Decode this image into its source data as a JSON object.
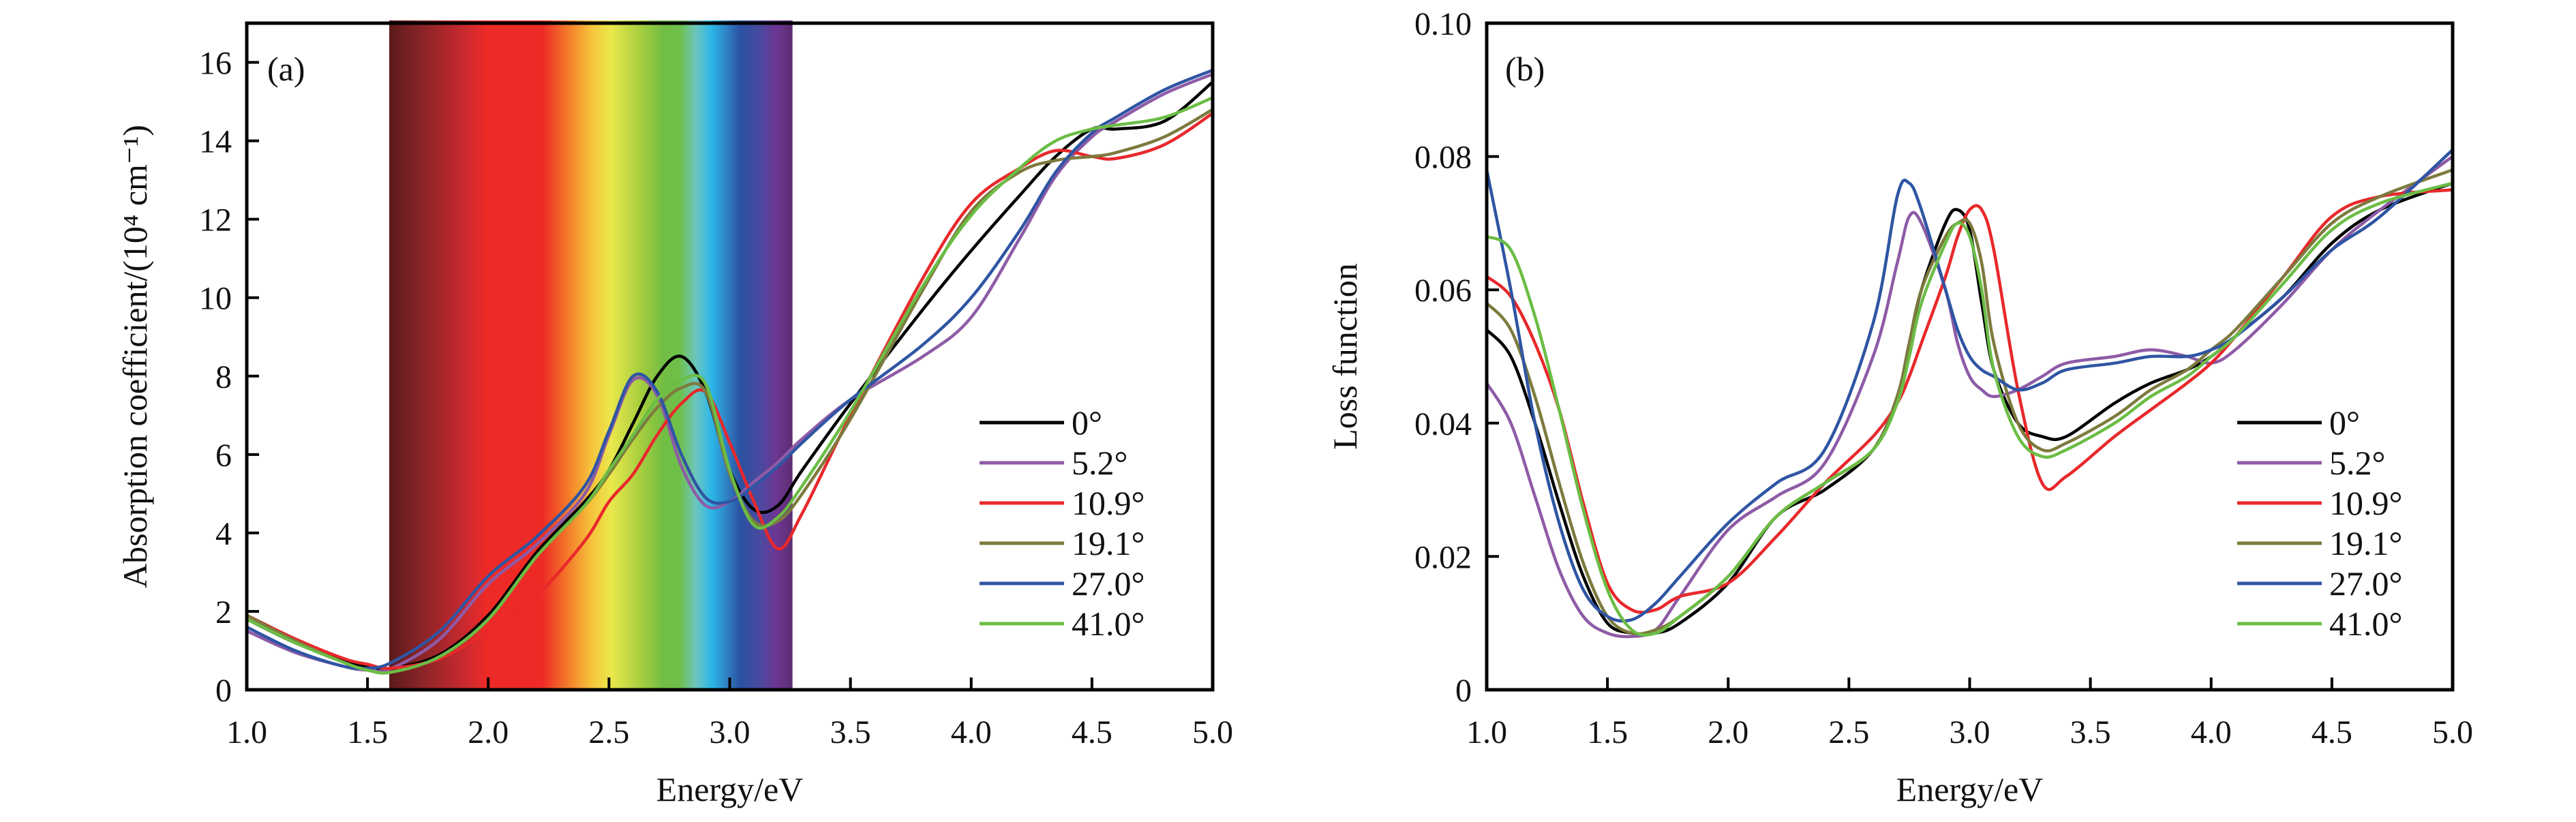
{
  "chart_data": [
    {
      "type": "line",
      "panel_label": "(a)",
      "xlabel": "Energy/eV",
      "ylabel": "Absorption coefficient/(10⁴ cm⁻¹)",
      "xlim": [
        1.0,
        5.0
      ],
      "ylim": [
        0,
        17
      ],
      "xticks": [
        "1.0",
        "1.5",
        "2.0",
        "2.5",
        "3.0",
        "3.5",
        "4.0",
        "4.5",
        "5.0"
      ],
      "yticks": [
        "0",
        "2",
        "4",
        "6",
        "8",
        "10",
        "12",
        "14",
        "16"
      ],
      "visible_spectrum_band": {
        "from_eV": 1.59,
        "to_eV": 3.26
      },
      "legend_position": "center-right",
      "x": [
        1.0,
        1.2,
        1.4,
        1.5,
        1.6,
        1.8,
        2.0,
        2.2,
        2.4,
        2.5,
        2.6,
        2.7,
        2.8,
        2.9,
        3.0,
        3.1,
        3.2,
        3.3,
        3.5,
        3.8,
        4.0,
        4.2,
        4.35,
        4.5,
        4.6,
        4.8,
        5.0
      ],
      "series": [
        {
          "name": "0°",
          "color": "#000000",
          "values": [
            1.8,
            1.2,
            0.75,
            0.6,
            0.55,
            0.9,
            1.9,
            3.5,
            4.8,
            5.6,
            6.8,
            8.0,
            8.5,
            7.6,
            5.6,
            4.6,
            4.7,
            5.6,
            7.3,
            9.7,
            11.2,
            12.6,
            13.6,
            14.3,
            14.3,
            14.5,
            15.5
          ]
        },
        {
          "name": "5.2°",
          "color": "#8e5ba6",
          "values": [
            1.5,
            0.95,
            0.6,
            0.5,
            0.55,
            1.3,
            2.7,
            3.7,
            5.0,
            6.5,
            7.9,
            7.5,
            5.7,
            4.7,
            4.8,
            5.3,
            5.8,
            6.4,
            7.4,
            8.5,
            9.5,
            11.5,
            13.1,
            14.1,
            14.5,
            15.2,
            15.7
          ]
        },
        {
          "name": "10.9°",
          "color": "#e8282b",
          "values": [
            1.9,
            1.3,
            0.8,
            0.65,
            0.55,
            0.8,
            1.5,
            2.4,
            3.8,
            4.8,
            5.5,
            6.5,
            7.3,
            7.6,
            6.3,
            4.8,
            3.6,
            4.5,
            7.0,
            10.5,
            12.4,
            13.3,
            13.75,
            13.6,
            13.55,
            13.9,
            14.7
          ]
        },
        {
          "name": "19.1°",
          "color": "#7d7a3e",
          "values": [
            1.9,
            1.25,
            0.7,
            0.5,
            0.45,
            0.85,
            1.8,
            3.4,
            4.7,
            5.5,
            6.4,
            7.2,
            7.7,
            7.6,
            5.5,
            4.3,
            4.3,
            5.0,
            6.9,
            10.2,
            12.2,
            13.2,
            13.5,
            13.6,
            13.7,
            14.1,
            14.8
          ]
        },
        {
          "name": "27.0°",
          "color": "#2f55a3",
          "values": [
            1.6,
            1.0,
            0.6,
            0.55,
            0.7,
            1.5,
            2.9,
            3.9,
            5.2,
            6.6,
            8.0,
            7.6,
            6.0,
            4.9,
            4.8,
            5.2,
            5.7,
            6.3,
            7.4,
            8.8,
            10.0,
            11.7,
            13.2,
            14.2,
            14.6,
            15.3,
            15.8
          ]
        },
        {
          "name": "41.0°",
          "color": "#6bbd45",
          "values": [
            1.8,
            1.2,
            0.7,
            0.5,
            0.45,
            0.85,
            1.8,
            3.4,
            4.7,
            5.6,
            6.5,
            7.4,
            7.9,
            7.8,
            5.6,
            4.2,
            4.4,
            5.2,
            7.1,
            10.3,
            12.1,
            13.3,
            14.0,
            14.3,
            14.4,
            14.6,
            15.1
          ]
        }
      ]
    },
    {
      "type": "line",
      "panel_label": "(b)",
      "xlabel": "Energy/eV",
      "ylabel": "Loss function",
      "xlim": [
        1.0,
        5.0
      ],
      "ylim": [
        0,
        0.1
      ],
      "xticks": [
        "1.0",
        "1.5",
        "2.0",
        "2.5",
        "3.0",
        "3.5",
        "4.0",
        "4.5",
        "5.0"
      ],
      "yticks": [
        "0",
        "0.02",
        "0.04",
        "0.06",
        "0.08",
        "0.10"
      ],
      "legend_position": "center-right",
      "x": [
        1.0,
        1.1,
        1.2,
        1.3,
        1.4,
        1.5,
        1.6,
        1.7,
        1.8,
        2.0,
        2.2,
        2.4,
        2.6,
        2.7,
        2.75,
        2.8,
        2.9,
        2.95,
        3.0,
        3.05,
        3.1,
        3.2,
        3.3,
        3.4,
        3.6,
        3.75,
        3.9,
        4.0,
        4.1,
        4.3,
        4.5,
        4.7,
        5.0
      ],
      "series": [
        {
          "name": "0°",
          "color": "#000000",
          "values": [
            0.054,
            0.05,
            0.04,
            0.028,
            0.017,
            0.01,
            0.0085,
            0.0085,
            0.01,
            0.016,
            0.026,
            0.03,
            0.036,
            0.044,
            0.052,
            0.06,
            0.07,
            0.072,
            0.069,
            0.058,
            0.048,
            0.04,
            0.038,
            0.038,
            0.043,
            0.046,
            0.048,
            0.05,
            0.053,
            0.059,
            0.067,
            0.072,
            0.076
          ]
        },
        {
          "name": "5.2°",
          "color": "#8e5ba6",
          "values": [
            0.046,
            0.04,
            0.029,
            0.018,
            0.011,
            0.0085,
            0.008,
            0.009,
            0.014,
            0.024,
            0.029,
            0.034,
            0.05,
            0.064,
            0.071,
            0.07,
            0.06,
            0.052,
            0.047,
            0.045,
            0.044,
            0.045,
            0.047,
            0.049,
            0.05,
            0.051,
            0.05,
            0.049,
            0.051,
            0.058,
            0.066,
            0.072,
            0.08
          ]
        },
        {
          "name": "10.9°",
          "color": "#e8282b",
          "values": [
            0.062,
            0.059,
            0.052,
            0.042,
            0.028,
            0.016,
            0.012,
            0.012,
            0.014,
            0.016,
            0.023,
            0.031,
            0.038,
            0.043,
            0.047,
            0.052,
            0.062,
            0.068,
            0.072,
            0.072,
            0.066,
            0.045,
            0.031,
            0.032,
            0.038,
            0.042,
            0.046,
            0.049,
            0.053,
            0.062,
            0.071,
            0.074,
            0.075
          ]
        },
        {
          "name": "19.1°",
          "color": "#7d7a3e",
          "values": [
            0.058,
            0.054,
            0.044,
            0.031,
            0.019,
            0.011,
            0.0085,
            0.009,
            0.011,
            0.017,
            0.026,
            0.031,
            0.036,
            0.044,
            0.052,
            0.06,
            0.068,
            0.07,
            0.07,
            0.064,
            0.052,
            0.04,
            0.036,
            0.037,
            0.041,
            0.045,
            0.048,
            0.051,
            0.054,
            0.062,
            0.07,
            0.074,
            0.078
          ]
        },
        {
          "name": "27.0°",
          "color": "#2f55a3",
          "values": [
            0.078,
            0.06,
            0.04,
            0.025,
            0.015,
            0.011,
            0.0105,
            0.013,
            0.017,
            0.025,
            0.031,
            0.036,
            0.055,
            0.074,
            0.076,
            0.072,
            0.06,
            0.054,
            0.05,
            0.048,
            0.047,
            0.045,
            0.046,
            0.048,
            0.049,
            0.05,
            0.05,
            0.051,
            0.053,
            0.059,
            0.066,
            0.071,
            0.081
          ]
        },
        {
          "name": "41.0°",
          "color": "#6bbd45",
          "values": [
            0.068,
            0.066,
            0.056,
            0.042,
            0.027,
            0.015,
            0.009,
            0.0085,
            0.011,
            0.017,
            0.026,
            0.031,
            0.036,
            0.043,
            0.05,
            0.058,
            0.067,
            0.07,
            0.068,
            0.06,
            0.048,
            0.038,
            0.035,
            0.036,
            0.04,
            0.044,
            0.047,
            0.05,
            0.053,
            0.061,
            0.069,
            0.073,
            0.076
          ]
        }
      ]
    }
  ]
}
